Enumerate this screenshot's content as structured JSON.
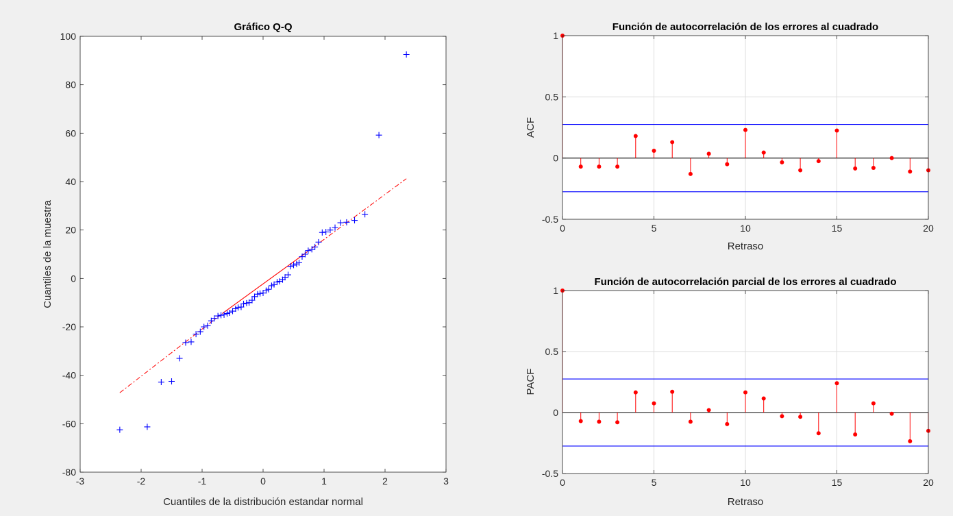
{
  "window": {
    "background": "#f0f0f0"
  },
  "chart_data": [
    {
      "id": "qq",
      "type": "scatter",
      "title": "Gráfico Q-Q",
      "xlabel": "Cuantiles de la distribución estandar normal",
      "ylabel": "Cuantiles de la  muestra",
      "xlim": [
        -3,
        3
      ],
      "ylim": [
        -80,
        100
      ],
      "xticks": [
        -3,
        -2,
        -1,
        0,
        1,
        2,
        3
      ],
      "yticks": [
        -80,
        -60,
        -40,
        -20,
        0,
        20,
        40,
        60,
        80,
        100
      ],
      "grid": false,
      "marker": "plus",
      "marker_color": "#0000ff",
      "line_color": "#ff0000",
      "points": [
        {
          "x": -2.35,
          "y": -62.5
        },
        {
          "x": -1.9,
          "y": -61.3
        },
        {
          "x": -1.67,
          "y": -42.8
        },
        {
          "x": -1.5,
          "y": -42.5
        },
        {
          "x": -1.37,
          "y": -33.0
        },
        {
          "x": -1.27,
          "y": -26.5
        },
        {
          "x": -1.18,
          "y": -26.2
        },
        {
          "x": -1.1,
          "y": -23.0
        },
        {
          "x": -1.03,
          "y": -22.0
        },
        {
          "x": -0.97,
          "y": -20.0
        },
        {
          "x": -0.91,
          "y": -19.5
        },
        {
          "x": -0.85,
          "y": -17.5
        },
        {
          "x": -0.8,
          "y": -16.5
        },
        {
          "x": -0.74,
          "y": -15.5
        },
        {
          "x": -0.69,
          "y": -15.2
        },
        {
          "x": -0.64,
          "y": -15.0
        },
        {
          "x": -0.59,
          "y": -14.5
        },
        {
          "x": -0.55,
          "y": -14.2
        },
        {
          "x": -0.5,
          "y": -13.5
        },
        {
          "x": -0.45,
          "y": -12.5
        },
        {
          "x": -0.41,
          "y": -12.0
        },
        {
          "x": -0.36,
          "y": -11.8
        },
        {
          "x": -0.32,
          "y": -10.5
        },
        {
          "x": -0.27,
          "y": -10.2
        },
        {
          "x": -0.23,
          "y": -10.0
        },
        {
          "x": -0.18,
          "y": -9.0
        },
        {
          "x": -0.14,
          "y": -7.5
        },
        {
          "x": -0.09,
          "y": -6.5
        },
        {
          "x": -0.05,
          "y": -6.2
        },
        {
          "x": 0.0,
          "y": -6.0
        },
        {
          "x": 0.05,
          "y": -5.0
        },
        {
          "x": 0.09,
          "y": -4.5
        },
        {
          "x": 0.14,
          "y": -3.0
        },
        {
          "x": 0.18,
          "y": -2.5
        },
        {
          "x": 0.23,
          "y": -1.5
        },
        {
          "x": 0.27,
          "y": -1.2
        },
        {
          "x": 0.32,
          "y": -0.5
        },
        {
          "x": 0.36,
          "y": 0.5
        },
        {
          "x": 0.41,
          "y": 1.5
        },
        {
          "x": 0.45,
          "y": 5.0
        },
        {
          "x": 0.5,
          "y": 5.5
        },
        {
          "x": 0.55,
          "y": 6.0
        },
        {
          "x": 0.59,
          "y": 6.5
        },
        {
          "x": 0.64,
          "y": 9.0
        },
        {
          "x": 0.69,
          "y": 10.0
        },
        {
          "x": 0.74,
          "y": 11.5
        },
        {
          "x": 0.8,
          "y": 12.0
        },
        {
          "x": 0.85,
          "y": 13.0
        },
        {
          "x": 0.91,
          "y": 15.0
        },
        {
          "x": 0.97,
          "y": 19.0
        },
        {
          "x": 1.03,
          "y": 19.2
        },
        {
          "x": 1.1,
          "y": 20.0
        },
        {
          "x": 1.18,
          "y": 21.0
        },
        {
          "x": 1.27,
          "y": 23.0
        },
        {
          "x": 1.37,
          "y": 23.2
        },
        {
          "x": 1.5,
          "y": 24.0
        },
        {
          "x": 1.67,
          "y": 26.5
        },
        {
          "x": 1.9,
          "y": 59.2
        },
        {
          "x": 2.35,
          "y": 92.5
        }
      ],
      "reference_line": [
        {
          "x": -2.35,
          "y": -47.2
        },
        {
          "x": -0.67,
          "y": -14.5
        },
        {
          "x": 0.67,
          "y": 10.0
        },
        {
          "x": 2.35,
          "y": 41.2
        }
      ]
    },
    {
      "id": "acf",
      "type": "stem",
      "title": "Función de autocorrelación de los errores al cuadrado",
      "xlabel": "Retraso",
      "ylabel": "ACF",
      "xlim": [
        0,
        20
      ],
      "ylim": [
        -0.5,
        1
      ],
      "xticks": [
        0,
        5,
        10,
        15,
        20
      ],
      "yticks": [
        -0.5,
        0,
        0.5,
        1
      ],
      "yticklabels": [
        "-0.5",
        "0",
        "0.5",
        "1"
      ],
      "grid": true,
      "stem_color": "#ff0000",
      "bound_color": "#0000ff",
      "bounds": [
        0.275,
        -0.275
      ],
      "lags": [
        0,
        1,
        2,
        3,
        4,
        5,
        6,
        7,
        8,
        9,
        10,
        11,
        12,
        13,
        14,
        15,
        16,
        17,
        18,
        19,
        20
      ],
      "values": [
        1.0,
        -0.07,
        -0.07,
        -0.07,
        0.18,
        0.06,
        0.13,
        -0.13,
        0.035,
        -0.05,
        0.23,
        0.045,
        -0.035,
        -0.1,
        -0.025,
        0.225,
        -0.085,
        -0.08,
        0.0,
        -0.11,
        -0.1
      ]
    },
    {
      "id": "pacf",
      "type": "stem",
      "title": "Función de autocorrelación parcial de los errores al cuadrado",
      "xlabel": "Retraso",
      "ylabel": "PACF",
      "xlim": [
        0,
        20
      ],
      "ylim": [
        -0.5,
        1
      ],
      "xticks": [
        0,
        5,
        10,
        15,
        20
      ],
      "yticks": [
        -0.5,
        0,
        0.5,
        1
      ],
      "yticklabels": [
        "-0.5",
        "0",
        "0.5",
        "1"
      ],
      "grid": true,
      "stem_color": "#ff0000",
      "bound_color": "#0000ff",
      "bounds": [
        0.275,
        -0.275
      ],
      "lags": [
        0,
        1,
        2,
        3,
        4,
        5,
        6,
        7,
        8,
        9,
        10,
        11,
        12,
        13,
        14,
        15,
        16,
        17,
        18,
        19,
        20
      ],
      "values": [
        1.0,
        -0.07,
        -0.075,
        -0.08,
        0.165,
        0.075,
        0.17,
        -0.075,
        0.02,
        -0.095,
        0.165,
        0.115,
        -0.03,
        -0.035,
        -0.17,
        0.24,
        -0.18,
        0.075,
        -0.01,
        -0.235,
        -0.15
      ]
    }
  ]
}
